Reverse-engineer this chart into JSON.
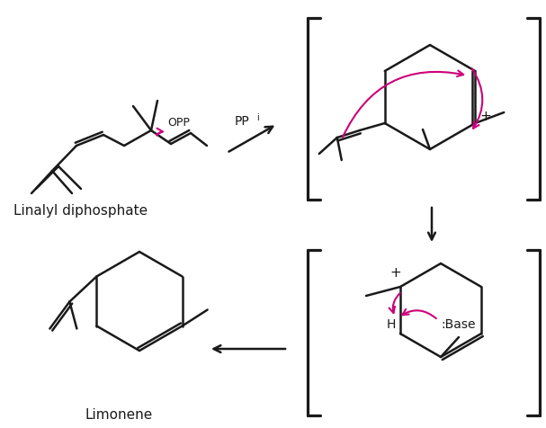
{
  "bg_color": "#ffffff",
  "line_color": "#1a1a1a",
  "arrow_color": "#cc007a",
  "lw": 1.8,
  "fig_width": 6.07,
  "fig_height": 4.76,
  "labels": {
    "linalyl": "Linalyl diphosphate",
    "limonene": "Limonene",
    "ppi": "PP",
    "ppi_sub": "i",
    "opp": "OPP",
    "plus1": "+",
    "plus2": "+",
    "base": ":Base",
    "H": "H"
  },
  "font_size_label": 11,
  "font_size_small": 9,
  "font_size_plus": 11
}
